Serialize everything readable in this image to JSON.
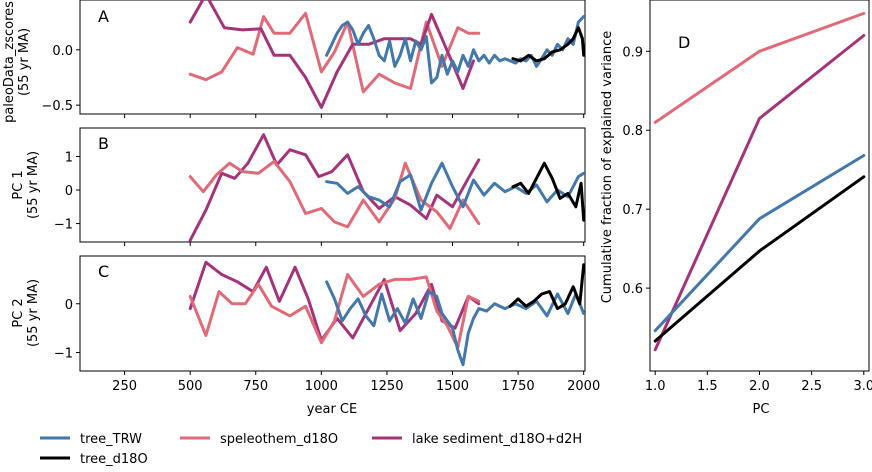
{
  "colors": {
    "tree_TRW": "#4477aa",
    "tree_d18O": "#000000",
    "speleothem_d18O": "#e06a78",
    "lake_sediment": "#a3347a"
  },
  "legend": [
    {
      "name": "tree_TRW",
      "color": "#4477aa"
    },
    {
      "name": "speleothem_d18O",
      "color": "#e06a78"
    },
    {
      "name": "lake sediment_d18O+d2H",
      "color": "#a3347a"
    },
    {
      "name": "tree_d18O",
      "color": "#000000"
    }
  ],
  "chart_data": [
    {
      "type": "line",
      "panel": "A",
      "ylabel_line1": "paleoData_zscores",
      "ylabel_line2": "(55 yr MA)",
      "xlabel": "",
      "xlim": [
        80,
        2005
      ],
      "ylim": [
        -0.58,
        0.45
      ],
      "yticks": [
        -0.5,
        0.0
      ],
      "ytick_labels": [
        "−0.5",
        "0.0"
      ],
      "xticks": [
        250,
        500,
        750,
        1000,
        1250,
        1500,
        1750,
        2000
      ],
      "series": [
        {
          "name": "speleothem_d18O",
          "color": "#e06a78",
          "x": [
            500,
            560,
            620,
            680,
            740,
            780,
            820,
            880,
            940,
            1000,
            1050,
            1100,
            1160,
            1220,
            1280,
            1340,
            1400,
            1460,
            1520,
            1560,
            1600
          ],
          "y": [
            -0.22,
            -0.27,
            -0.2,
            0.02,
            -0.04,
            0.3,
            0.15,
            0.15,
            0.33,
            -0.2,
            -0.02,
            0.25,
            -0.38,
            -0.22,
            -0.3,
            -0.35,
            0.25,
            -0.15,
            0.2,
            0.15,
            0.15
          ]
        },
        {
          "name": "lake sediment_d18O+d2H",
          "color": "#a3347a",
          "x": [
            500,
            560,
            630,
            700,
            770,
            820,
            880,
            940,
            1000,
            1060,
            1120,
            1180,
            1240,
            1300,
            1340,
            1380,
            1420,
            1460,
            1500,
            1540,
            1580
          ],
          "y": [
            0.25,
            0.5,
            0.2,
            0.18,
            0.19,
            -0.05,
            -0.05,
            -0.25,
            -0.52,
            -0.2,
            0.05,
            0.05,
            0.1,
            0.1,
            0.1,
            0.05,
            0.32,
            0.1,
            -0.12,
            -0.35,
            -0.1
          ]
        },
        {
          "name": "tree_TRW",
          "color": "#4477aa",
          "x": [
            1020,
            1040,
            1060,
            1080,
            1100,
            1120,
            1140,
            1160,
            1180,
            1200,
            1220,
            1240,
            1260,
            1280,
            1300,
            1320,
            1340,
            1360,
            1380,
            1400,
            1420,
            1440,
            1460,
            1480,
            1500,
            1520,
            1540,
            1560,
            1580,
            1600,
            1620,
            1640,
            1660,
            1680,
            1700,
            1720,
            1740,
            1760,
            1780,
            1800,
            1820,
            1840,
            1860,
            1880,
            1900,
            1920,
            1940,
            1960,
            1980,
            2000
          ],
          "y": [
            -0.05,
            0.05,
            0.15,
            0.22,
            0.25,
            0.18,
            0.05,
            0.15,
            0.22,
            0.1,
            -0.05,
            -0.1,
            0.08,
            -0.15,
            -0.05,
            0.1,
            -0.1,
            0.08,
            0.0,
            0.12,
            -0.3,
            -0.25,
            -0.05,
            -0.22,
            -0.1,
            -0.2,
            -0.05,
            -0.15,
            0.0,
            -0.1,
            -0.05,
            -0.12,
            -0.05,
            -0.1,
            -0.08,
            -0.1,
            -0.12,
            -0.08,
            -0.1,
            -0.05,
            -0.15,
            -0.08,
            0.0,
            -0.05,
            0.05,
            0.0,
            0.1,
            0.05,
            0.25,
            0.3
          ]
        },
        {
          "name": "tree_d18O",
          "color": "#000000",
          "x": [
            1730,
            1760,
            1790,
            1820,
            1850,
            1880,
            1910,
            1940,
            1960,
            1980,
            1995,
            2000
          ],
          "y": [
            -0.08,
            -0.1,
            -0.05,
            -0.1,
            -0.08,
            -0.02,
            0.0,
            0.05,
            0.1,
            0.2,
            0.1,
            -0.05
          ]
        }
      ]
    },
    {
      "type": "line",
      "panel": "B",
      "ylabel_line1": "PC 1",
      "ylabel_line2": "(55 yr MA)",
      "xlabel": "",
      "xlim": [
        80,
        2005
      ],
      "ylim": [
        -1.55,
        1.85
      ],
      "yticks": [
        -1,
        0,
        1
      ],
      "ytick_labels": [
        "−1",
        "0",
        "1"
      ],
      "xticks": [
        250,
        500,
        750,
        1000,
        1250,
        1500,
        1750,
        2000
      ],
      "series": [
        {
          "name": "lake sediment_d18O+d2H",
          "color": "#a3347a",
          "x": [
            500,
            560,
            620,
            670,
            720,
            780,
            830,
            880,
            940,
            990,
            1040,
            1100,
            1160,
            1220,
            1280,
            1340,
            1400,
            1440,
            1500,
            1560,
            1600
          ],
          "y": [
            -1.5,
            -0.6,
            0.5,
            0.35,
            0.8,
            1.65,
            0.75,
            1.2,
            1.05,
            0.4,
            0.55,
            1.05,
            -0.05,
            -0.55,
            -0.2,
            -0.45,
            -0.85,
            -0.15,
            -0.5,
            0.35,
            0.9
          ]
        },
        {
          "name": "speleothem_d18O",
          "color": "#e06a78",
          "x": [
            500,
            550,
            600,
            650,
            700,
            760,
            820,
            880,
            940,
            1000,
            1050,
            1100,
            1160,
            1220,
            1280,
            1320,
            1380,
            1440,
            1490,
            1540,
            1600
          ],
          "y": [
            0.4,
            -0.05,
            0.45,
            0.8,
            0.55,
            0.5,
            0.85,
            0.25,
            -0.7,
            -0.55,
            -0.95,
            -1.1,
            -0.3,
            -0.95,
            -0.25,
            0.8,
            -0.3,
            -0.65,
            -1.15,
            -0.3,
            -1.0
          ]
        },
        {
          "name": "tree_TRW",
          "color": "#4477aa",
          "x": [
            1020,
            1060,
            1100,
            1140,
            1180,
            1220,
            1260,
            1300,
            1340,
            1380,
            1420,
            1460,
            1500,
            1540,
            1580,
            1620,
            1660,
            1700,
            1740,
            1780,
            1820,
            1860,
            1900,
            1940,
            1980,
            2000
          ],
          "y": [
            0.25,
            0.2,
            -0.1,
            0.1,
            -0.2,
            -0.3,
            -0.5,
            0.25,
            0.45,
            -0.6,
            0.2,
            0.8,
            0.1,
            -0.5,
            0.3,
            -0.15,
            0.2,
            -0.05,
            0.1,
            -0.1,
            0.15,
            -0.35,
            0.0,
            -0.2,
            0.4,
            0.5
          ]
        },
        {
          "name": "tree_d18O",
          "color": "#000000",
          "x": [
            1730,
            1760,
            1790,
            1820,
            1850,
            1880,
            1910,
            1940,
            1970,
            1990,
            2000
          ],
          "y": [
            0.1,
            0.2,
            -0.1,
            0.35,
            0.8,
            0.35,
            -0.25,
            -0.1,
            -0.5,
            0.2,
            -0.9
          ]
        }
      ]
    },
    {
      "type": "line",
      "panel": "C",
      "ylabel_line1": "PC 2",
      "ylabel_line2": "(55 yr MA)",
      "xlabel": "year CE",
      "xlim": [
        80,
        2005
      ],
      "ylim": [
        -1.38,
        0.98
      ],
      "yticks": [
        -1,
        0
      ],
      "ytick_labels": [
        "−1",
        "0"
      ],
      "xticks": [
        250,
        500,
        750,
        1000,
        1250,
        1500,
        1750,
        2000
      ],
      "xtick_labels": [
        "250",
        "500",
        "750",
        "1000",
        "1250",
        "1500",
        "1750",
        "2000"
      ],
      "series": [
        {
          "name": "lake sediment_d18O+d2H",
          "color": "#a3347a",
          "x": [
            500,
            560,
            620,
            680,
            740,
            790,
            840,
            900,
            950,
            1000,
            1060,
            1120,
            1180,
            1240,
            1300,
            1360,
            1420,
            1460,
            1510,
            1560,
            1600
          ],
          "y": [
            -0.1,
            0.85,
            0.6,
            0.45,
            0.25,
            0.75,
            0.05,
            0.75,
            0.1,
            -0.75,
            -0.3,
            -0.7,
            -0.1,
            0.5,
            -0.55,
            -0.2,
            0.4,
            -0.35,
            -0.5,
            0.15,
            0.0
          ]
        },
        {
          "name": "speleothem_d18O",
          "color": "#e06a78",
          "x": [
            500,
            560,
            610,
            660,
            710,
            760,
            810,
            880,
            940,
            1000,
            1050,
            1100,
            1160,
            1220,
            1280,
            1340,
            1400,
            1440,
            1480,
            1520,
            1560,
            1600
          ],
          "y": [
            0.15,
            -0.65,
            0.25,
            0.0,
            0.0,
            0.4,
            -0.05,
            -0.25,
            -0.05,
            -0.8,
            -0.35,
            0.6,
            0.15,
            0.4,
            0.5,
            0.5,
            0.55,
            -0.15,
            -0.45,
            -0.9,
            0.15,
            0.05
          ]
        },
        {
          "name": "tree_TRW",
          "color": "#4477aa",
          "x": [
            1020,
            1050,
            1080,
            1110,
            1140,
            1170,
            1200,
            1230,
            1260,
            1290,
            1320,
            1350,
            1380,
            1410,
            1440,
            1460,
            1480,
            1500,
            1520,
            1540,
            1560,
            1580,
            1600,
            1630,
            1660,
            1700,
            1740,
            1780,
            1820,
            1860,
            1900,
            1940,
            1970,
            2000
          ],
          "y": [
            0.45,
            0.1,
            -0.35,
            -0.1,
            0.1,
            -0.25,
            -0.45,
            0.2,
            -0.35,
            -0.1,
            -0.4,
            0.1,
            -0.3,
            0.25,
            0.15,
            -0.2,
            -0.35,
            -0.5,
            -0.95,
            -1.25,
            -0.6,
            -0.3,
            -0.1,
            -0.15,
            0.0,
            -0.1,
            0.0,
            -0.1,
            0.05,
            -0.25,
            0.2,
            -0.2,
            0.2,
            -0.2
          ]
        },
        {
          "name": "tree_d18O",
          "color": "#000000",
          "x": [
            1720,
            1750,
            1780,
            1810,
            1840,
            1870,
            1900,
            1930,
            1960,
            1985,
            2000
          ],
          "y": [
            -0.05,
            0.1,
            -0.05,
            0.05,
            0.2,
            0.25,
            -0.1,
            0.0,
            0.35,
            0.0,
            0.8
          ]
        }
      ]
    },
    {
      "type": "line",
      "panel": "D",
      "xlabel": "PC",
      "ylabel": "Cumulative fraction of explained variance",
      "xlim": [
        0.95,
        3.05
      ],
      "ylim": [
        0.495,
        0.965
      ],
      "xticks": [
        1.0,
        1.5,
        2.0,
        2.5,
        3.0
      ],
      "xtick_labels": [
        "1.0",
        "1.5",
        "2.0",
        "2.5",
        "3.0"
      ],
      "yticks": [
        0.6,
        0.7,
        0.8,
        0.9
      ],
      "ytick_labels": [
        "0.6",
        "0.7",
        "0.8",
        "0.9"
      ],
      "series": [
        {
          "name": "speleothem_d18O",
          "color": "#e06a78",
          "x": [
            1,
            2,
            3
          ],
          "y": [
            0.81,
            0.9,
            0.948
          ]
        },
        {
          "name": "lake sediment_d18O+d2H",
          "color": "#a3347a",
          "x": [
            1,
            2,
            3
          ],
          "y": [
            0.522,
            0.815,
            0.92
          ]
        },
        {
          "name": "tree_TRW",
          "color": "#4477aa",
          "x": [
            1,
            2,
            3
          ],
          "y": [
            0.546,
            0.688,
            0.768
          ]
        },
        {
          "name": "tree_d18O",
          "color": "#000000",
          "x": [
            1,
            2,
            3
          ],
          "y": [
            0.533,
            0.647,
            0.741
          ]
        }
      ]
    }
  ]
}
